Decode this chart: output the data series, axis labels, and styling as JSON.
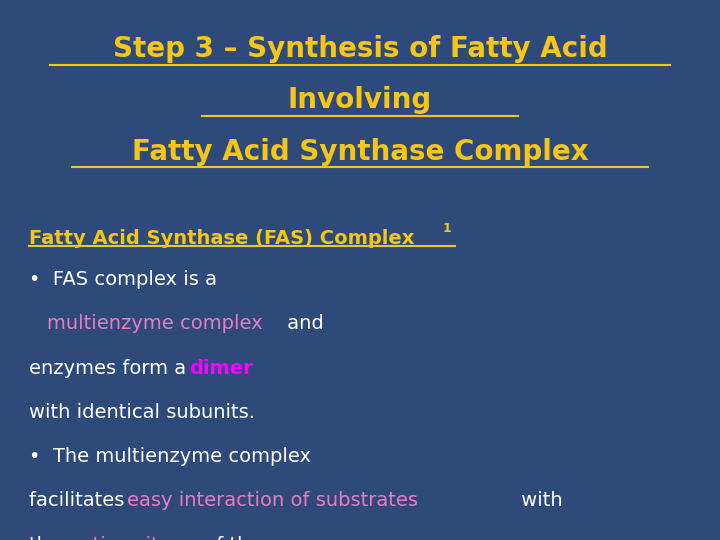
{
  "bg_color": "#2E4A7A",
  "title_line1": "Step 3 – Synthesis of Fatty Acid",
  "title_line2": "Involving",
  "title_line3": "Fatty Acid Synthase Complex",
  "title_color": "#F5C518",
  "subtitle_color": "#F5C518",
  "body_color": "#FFFFFF",
  "pink_color": "#E87DC0",
  "dimer_color": "#FF00FF",
  "figsize": [
    7.2,
    5.4
  ],
  "dpi": 100,
  "title_fontsize": 20,
  "subtitle_fontsize": 14,
  "body_fontsize": 14
}
